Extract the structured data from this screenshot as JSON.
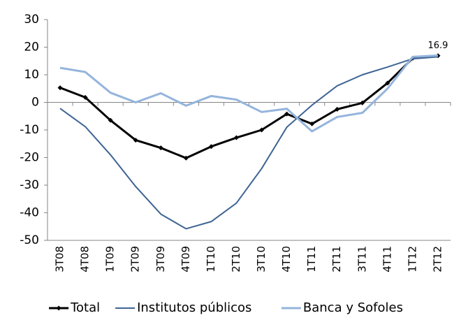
{
  "chart_data": {
    "type": "line",
    "categories": [
      "3T08",
      "4T08",
      "1T09",
      "2T09",
      "3T09",
      "4T09",
      "1T10",
      "2T10",
      "3T10",
      "4T10",
      "1T11",
      "2T11",
      "3T11",
      "4T11",
      "1T12",
      "2T12"
    ],
    "series": [
      {
        "name": "Total",
        "color": "#000000",
        "width": 3,
        "marker": true,
        "values": [
          5.3,
          1.8,
          -6.5,
          -13.7,
          -16.5,
          -20.2,
          -16,
          -12.8,
          -10,
          -4.2,
          -7.8,
          -2.5,
          -0.2,
          7,
          16,
          16.9
        ]
      },
      {
        "name": "Institutos públicos",
        "color": "#3e6494",
        "width": 2,
        "marker": false,
        "values": [
          -2.2,
          -8.8,
          -19,
          -30.5,
          -40.5,
          -45.8,
          -43.2,
          -36.5,
          -24,
          -9,
          -1,
          6,
          10,
          12.8,
          15.8,
          16.5
        ]
      },
      {
        "name": "Banca y Sofoles",
        "color": "#94b4dc",
        "width": 3,
        "marker": false,
        "values": [
          12.5,
          11,
          3.5,
          0,
          3.3,
          -1.2,
          2.3,
          1,
          -3.5,
          -2.3,
          -10.5,
          -5.3,
          -3.8,
          5,
          16.5,
          17
        ]
      }
    ],
    "ylim": [
      -50,
      30
    ],
    "yticks": [
      -50,
      -40,
      -30,
      -20,
      -10,
      0,
      10,
      20,
      30
    ],
    "grid": false,
    "legend": "bottom"
  }
}
